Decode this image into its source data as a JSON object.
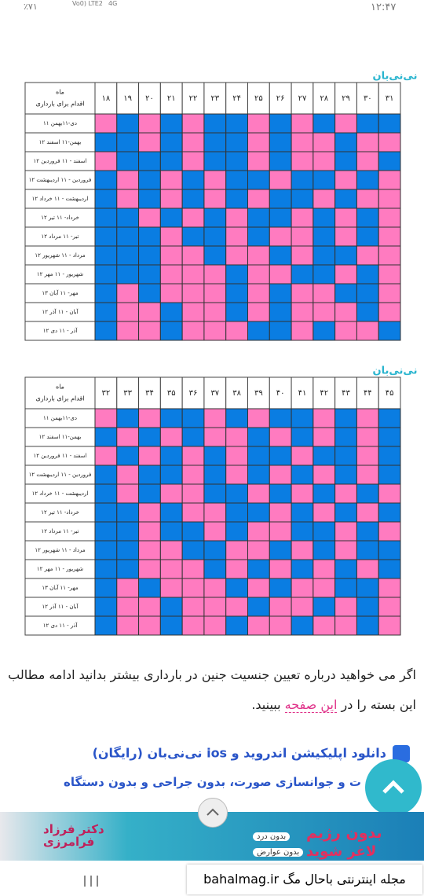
{
  "status_bar": {
    "battery": "٪۷۱",
    "network": "Vo0) LTE2",
    "network2": "4G",
    "time": "۱۲:۴۷"
  },
  "palette": [
    "#ff7bc0",
    "#0a7de2"
  ],
  "tables": [
    {
      "logo": "نی‌نی‌بان",
      "corner": [
        "ماه",
        "اقدام برای بارداری"
      ],
      "columns": [
        "۱۸",
        "۱۹",
        "۲۰",
        "۲۱",
        "۲۲",
        "۲۳",
        "۲۴",
        "۲۵",
        "۲۶",
        "۲۷",
        "۲۸",
        "۲۹",
        "۳۰",
        "۳۱"
      ],
      "rows": [
        {
          "label": "۱۱ دی-۱۱بهمن",
          "cells": [
            0,
            1,
            0,
            1,
            0,
            1,
            1,
            0,
            1,
            0,
            1,
            0,
            1,
            1
          ]
        },
        {
          "label": "۱۲ بهمن-۱۱ اسفند",
          "cells": [
            1,
            1,
            0,
            1,
            0,
            1,
            1,
            0,
            1,
            0,
            0,
            1,
            0,
            0
          ]
        },
        {
          "label": "۱۲ اسفند - ۱۱ فروردین",
          "cells": [
            0,
            1,
            1,
            1,
            0,
            1,
            1,
            0,
            1,
            0,
            0,
            1,
            0,
            1
          ]
        },
        {
          "label": "۱۲ فروردین - ۱۱ اردیبهشت",
          "cells": [
            1,
            0,
            1,
            0,
            1,
            0,
            1,
            1,
            0,
            1,
            1,
            0,
            1,
            0
          ]
        },
        {
          "label": "۱۲ اردیبهشت - ۱۱ خرداد",
          "cells": [
            1,
            0,
            1,
            0,
            1,
            0,
            1,
            0,
            1,
            1,
            0,
            1,
            0,
            0
          ]
        },
        {
          "label": "۱۲ خرداد- ۱۱ تیر",
          "cells": [
            1,
            1,
            0,
            1,
            0,
            1,
            0,
            1,
            1,
            0,
            1,
            0,
            1,
            0
          ]
        },
        {
          "label": "۱۲ تیر- ۱۱ مرداد",
          "cells": [
            1,
            1,
            1,
            0,
            1,
            1,
            0,
            1,
            0,
            0,
            1,
            0,
            1,
            0
          ]
        },
        {
          "label": "۱۲ مرداد - ۱۱ شهریور",
          "cells": [
            1,
            1,
            1,
            0,
            0,
            1,
            0,
            0,
            1,
            0,
            1,
            1,
            0,
            0
          ]
        },
        {
          "label": "۱۲ شهریور - ۱۱ مهر",
          "cells": [
            1,
            1,
            1,
            0,
            0,
            0,
            1,
            0,
            0,
            1,
            1,
            0,
            1,
            0
          ]
        },
        {
          "label": "۱۳ مهر- ۱۱ آبان",
          "cells": [
            1,
            0,
            1,
            0,
            0,
            0,
            1,
            0,
            1,
            0,
            0,
            1,
            1,
            0
          ]
        },
        {
          "label": "۱۲ آبان - ۱۱ آذر",
          "cells": [
            1,
            0,
            0,
            1,
            0,
            0,
            1,
            0,
            1,
            0,
            0,
            0,
            1,
            0
          ]
        },
        {
          "label": "۱۲ آذر - ۱۱ دی",
          "cells": [
            1,
            0,
            0,
            1,
            0,
            0,
            0,
            1,
            1,
            0,
            1,
            0,
            0,
            1
          ]
        }
      ]
    },
    {
      "logo": "نی‌نی‌بان",
      "corner": [
        "ماه",
        "اقدام برای بارداری"
      ],
      "columns": [
        "۳۲",
        "۳۳",
        "۳۴",
        "۳۵",
        "۳۶",
        "۳۷",
        "۳۸",
        "۳۹",
        "۴۰",
        "۴۱",
        "۴۲",
        "۴۳",
        "۴۴",
        "۴۵"
      ],
      "rows": [
        {
          "label": "۱۱ دی-۱۱بهمن",
          "cells": [
            0,
            1,
            0,
            1,
            1,
            0,
            1,
            0,
            1,
            1,
            0,
            1,
            0,
            1
          ]
        },
        {
          "label": "۱۲ بهمن-۱۱ اسفند",
          "cells": [
            1,
            0,
            1,
            0,
            1,
            0,
            0,
            1,
            0,
            1,
            0,
            1,
            0,
            1
          ]
        },
        {
          "label": "۱۲ اسفند - ۱۱ فروردین",
          "cells": [
            0,
            1,
            0,
            1,
            0,
            1,
            0,
            1,
            1,
            0,
            1,
            1,
            0,
            1
          ]
        },
        {
          "label": "۱۲ فروردین - ۱۱ اردیبهشت",
          "cells": [
            1,
            0,
            1,
            1,
            0,
            1,
            0,
            1,
            0,
            1,
            0,
            1,
            0,
            1
          ]
        },
        {
          "label": "۱۲ اردیبهشت - ۱۱ خرداد",
          "cells": [
            1,
            0,
            1,
            0,
            0,
            1,
            1,
            0,
            1,
            0,
            1,
            0,
            1,
            0
          ]
        },
        {
          "label": "۱۲ خرداد- ۱۱ تیر",
          "cells": [
            1,
            1,
            0,
            1,
            0,
            0,
            1,
            1,
            0,
            1,
            0,
            1,
            0,
            1
          ]
        },
        {
          "label": "۱۲ تیر- ۱۱ مرداد",
          "cells": [
            1,
            1,
            0,
            1,
            1,
            0,
            1,
            0,
            0,
            1,
            1,
            0,
            1,
            0
          ]
        },
        {
          "label": "۱۲ مرداد - ۱۱ شهریور",
          "cells": [
            1,
            1,
            0,
            0,
            1,
            1,
            0,
            0,
            1,
            0,
            1,
            0,
            1,
            1
          ]
        },
        {
          "label": "۱۲ شهریور - ۱۱ مهر",
          "cells": [
            1,
            1,
            0,
            0,
            0,
            1,
            0,
            1,
            0,
            1,
            0,
            1,
            0,
            1
          ]
        },
        {
          "label": "۱۳ مهر- ۱۱ آبان",
          "cells": [
            1,
            0,
            1,
            0,
            0,
            0,
            1,
            0,
            1,
            0,
            0,
            1,
            1,
            0
          ]
        },
        {
          "label": "۱۲ آبان - ۱۱ آذر",
          "cells": [
            1,
            0,
            0,
            1,
            0,
            0,
            0,
            1,
            0,
            0,
            1,
            0,
            1,
            0
          ]
        },
        {
          "label": "۱۲ آذر - ۱۱ دی",
          "cells": [
            1,
            0,
            0,
            1,
            0,
            0,
            1,
            0,
            0,
            1,
            0,
            0,
            1,
            0
          ]
        }
      ]
    }
  ],
  "article": {
    "text_start": "اگر می خواهید درباره تعیین جنسیت جنین در بارداری بیشتر بدانید ادامه مطالب این بسته را در",
    "link": "این صفحه",
    "text_end": "ببینید.",
    "download": "دانلود اپلیکیشن اندروید و ios نی‌نی‌بان (رایگان)",
    "teaser": "ت و جوانسازی صورت، بدون جراحی و بدون دستگاه"
  },
  "ad": {
    "headline": "بدون رژیم",
    "tag1": "بدون درد",
    "tag2": "بدون عوارض",
    "tagline": "لاغر شوید",
    "doctor1": "دکتر فرزاد",
    "doctor2": "فرامرزی"
  },
  "footer": {
    "site": "مجله اینترنتی باحال مگ bahalmag.ir"
  }
}
